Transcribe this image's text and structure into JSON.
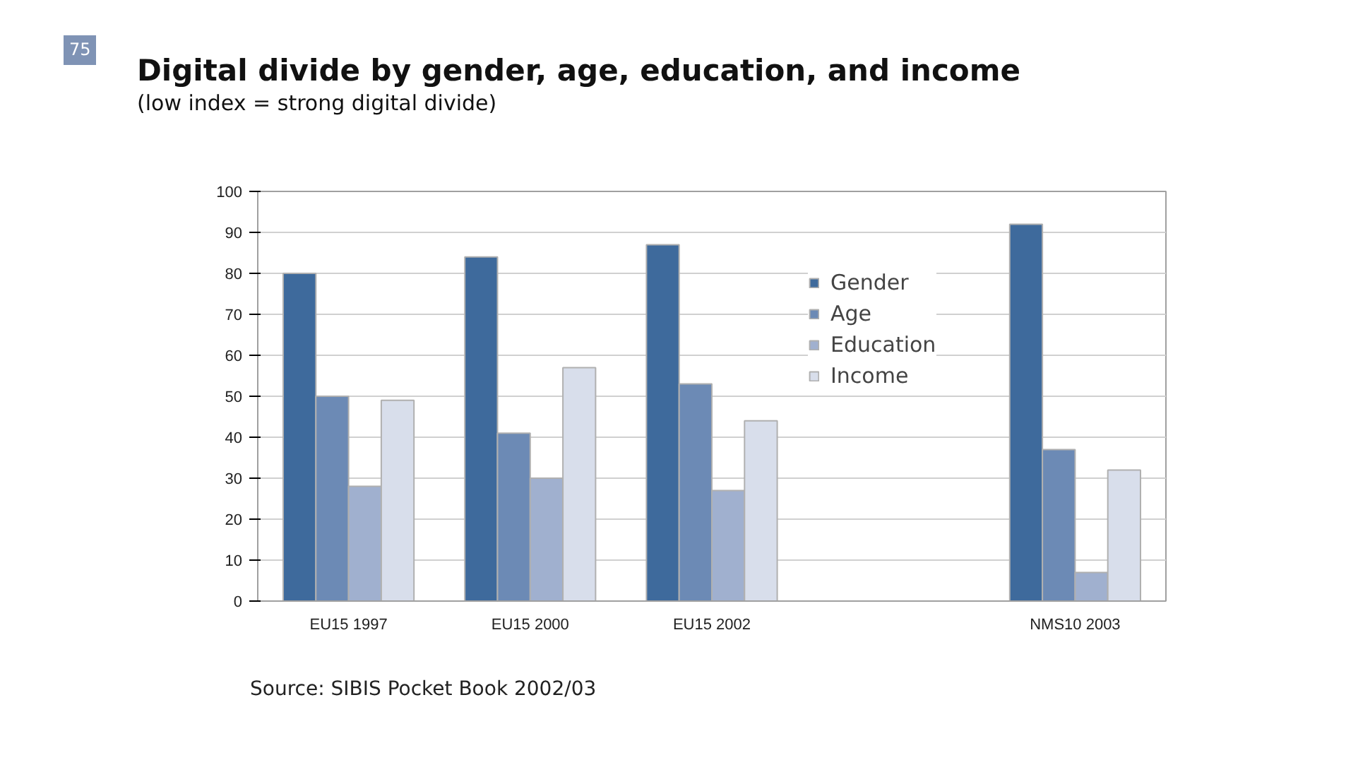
{
  "chart_data": {
    "type": "bar",
    "title": "Digital divide by gender, age, education, and income",
    "subtitle": "(low index = strong digital divide)",
    "categories": [
      "EU15 1997",
      "EU15 2000",
      "EU15 2002",
      null,
      "NMS10 2003"
    ],
    "series": [
      {
        "name": "Gender",
        "color": "#3e6a9c",
        "values": [
          80,
          84,
          87,
          null,
          92
        ]
      },
      {
        "name": "Age",
        "color": "#6c8ab5",
        "values": [
          50,
          41,
          53,
          null,
          37
        ]
      },
      {
        "name": "Education",
        "color": "#a0b0cf",
        "values": [
          28,
          30,
          27,
          null,
          7
        ]
      },
      {
        "name": "Income",
        "color": "#d8deeb",
        "values": [
          49,
          57,
          44,
          null,
          32
        ]
      }
    ],
    "ylim": [
      0,
      100
    ],
    "yticks": [
      0,
      10,
      20,
      30,
      40,
      50,
      60,
      70,
      80,
      90,
      100
    ],
    "grid": "y",
    "legend": "top right",
    "annotations": [
      "75",
      "Source: SIBIS Pocket Book 2002/03"
    ]
  }
}
